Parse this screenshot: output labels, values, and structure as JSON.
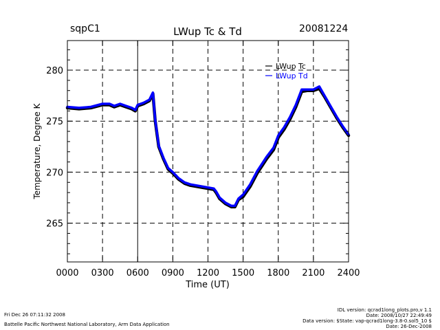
{
  "header": {
    "site": "sqpC1",
    "date": "20081224"
  },
  "chart_data": {
    "type": "line",
    "title": "LWup Tc & Td",
    "xlabel": "Time (UT)",
    "ylabel": "Temperature, Degree K",
    "xlim": [
      0,
      2400
    ],
    "ylim": [
      261.2,
      282.9
    ],
    "x_ticks": [
      0,
      300,
      600,
      900,
      1200,
      1500,
      1800,
      2100,
      2400
    ],
    "x_tick_labels": [
      "0000",
      "0300",
      "0600",
      "0900",
      "1200",
      "1500",
      "1800",
      "2100",
      "2400"
    ],
    "y_ticks": [
      265,
      270,
      275,
      280
    ],
    "y_tick_labels": [
      "265",
      "270",
      "275",
      "280"
    ],
    "grid": true,
    "legend_position": "top-right",
    "series": [
      {
        "name": "LWup Tc",
        "color": "#000000",
        "x": [
          0,
          100,
          200,
          300,
          360,
          400,
          450,
          500,
          550,
          580,
          600,
          650,
          700,
          730,
          750,
          780,
          820,
          860,
          900,
          950,
          1000,
          1050,
          1100,
          1150,
          1200,
          1250,
          1270,
          1300,
          1350,
          1400,
          1430,
          1460,
          1500,
          1560,
          1620,
          1700,
          1760,
          1800,
          1850,
          1900,
          1950,
          2000,
          2050,
          2100,
          2150,
          2200,
          2250,
          2300,
          2350,
          2400
        ],
        "y": [
          276.3,
          276.2,
          276.3,
          276.6,
          276.6,
          276.4,
          276.6,
          276.4,
          276.2,
          276.0,
          276.5,
          276.7,
          277.0,
          277.7,
          275.0,
          272.5,
          271.3,
          270.3,
          269.9,
          269.3,
          268.9,
          268.7,
          268.6,
          268.5,
          268.4,
          268.3,
          268.0,
          267.4,
          266.9,
          266.6,
          266.6,
          267.3,
          267.6,
          268.6,
          269.9,
          271.3,
          272.2,
          273.4,
          274.2,
          275.2,
          276.4,
          277.9,
          278.0,
          278.0,
          278.2,
          277.3,
          276.3,
          275.3,
          274.4,
          273.6
        ]
      },
      {
        "name": "LWup Td",
        "color": "#0000ff",
        "x": [
          0,
          100,
          200,
          300,
          360,
          400,
          450,
          500,
          550,
          580,
          600,
          650,
          700,
          730,
          750,
          780,
          820,
          860,
          900,
          950,
          1000,
          1050,
          1100,
          1150,
          1200,
          1250,
          1270,
          1300,
          1350,
          1400,
          1430,
          1460,
          1500,
          1560,
          1620,
          1700,
          1760,
          1800,
          1850,
          1900,
          1950,
          2000,
          2050,
          2100,
          2150,
          2200,
          2250,
          2300,
          2350,
          2400
        ],
        "y": [
          276.4,
          276.3,
          276.4,
          276.7,
          276.7,
          276.5,
          276.7,
          276.5,
          276.3,
          276.1,
          276.6,
          276.8,
          277.1,
          277.8,
          275.1,
          272.6,
          271.4,
          270.4,
          270.0,
          269.4,
          269.0,
          268.8,
          268.7,
          268.6,
          268.5,
          268.4,
          268.1,
          267.5,
          267.0,
          266.7,
          266.7,
          267.4,
          267.8,
          268.8,
          270.1,
          271.5,
          272.4,
          273.6,
          274.4,
          275.4,
          276.6,
          278.1,
          278.1,
          278.1,
          278.4,
          277.4,
          276.4,
          275.4,
          274.5,
          273.7
        ]
      }
    ]
  },
  "footer": {
    "timestamp": "Fri Dec 26 07:11:32 2008",
    "lab": "Battelle Pacific Northwest National Laboratory, Arm Data Application",
    "idl_version": "IDL version: qcrad1long_plots.pro,v 1.1",
    "idl_date": "Date: 2008/10/27 22:49:49",
    "data_version": "Data version: $State: vap-qcrad1long-3.8-0.sol5_10 $",
    "data_date": "Date: 26-Dec-2008"
  }
}
